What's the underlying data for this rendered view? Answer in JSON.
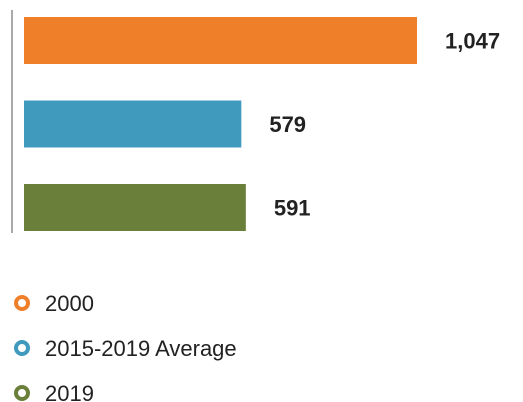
{
  "chart_data": {
    "type": "bar",
    "orientation": "horizontal",
    "series": [
      {
        "name": "2000",
        "color": "#f07f2a",
        "values": [
          1047
        ],
        "value_labels": [
          "1,047"
        ]
      },
      {
        "name": "2015-2019 Average",
        "color": "#3f9abd",
        "values": [
          579
        ],
        "value_labels": [
          "579"
        ]
      },
      {
        "name": "2019",
        "color": "#6a7f3a",
        "values": [
          591
        ],
        "value_labels": [
          "591"
        ]
      }
    ]
  }
}
